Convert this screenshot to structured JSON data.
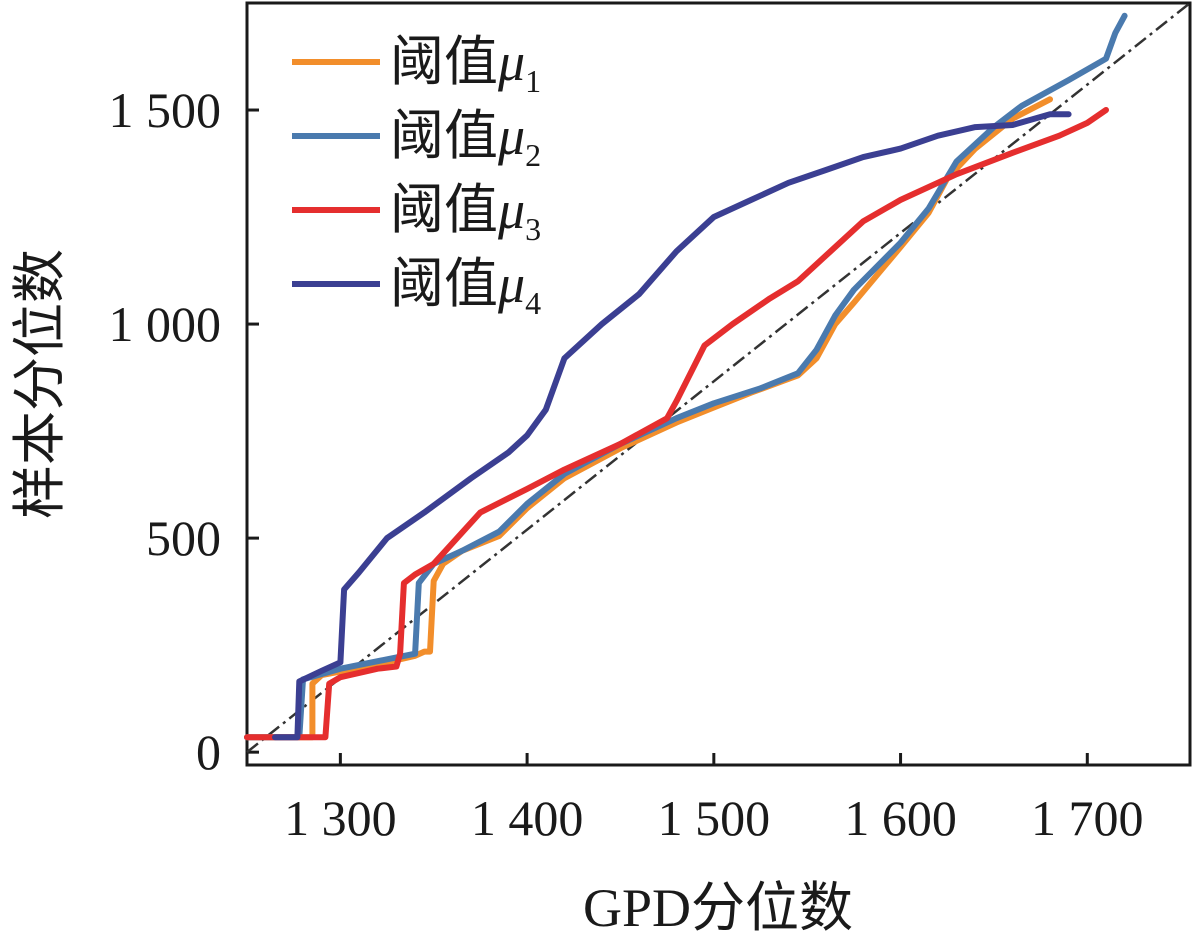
{
  "chart_data": {
    "type": "line",
    "xlabel": "GPD分位数",
    "ylabel": "样本分位数",
    "xlim": [
      1250,
      1755
    ],
    "ylim": [
      -30,
      1750
    ],
    "xticks": [
      {
        "value": 1300,
        "label": "1 300"
      },
      {
        "value": 1400,
        "label": "1 400"
      },
      {
        "value": 1500,
        "label": "1 500"
      },
      {
        "value": 1600,
        "label": "1 600"
      },
      {
        "value": 1700,
        "label": "1 700"
      }
    ],
    "yticks": [
      {
        "value": 0,
        "label": "0"
      },
      {
        "value": 500,
        "label": "500"
      },
      {
        "value": 1000,
        "label": "1 000"
      },
      {
        "value": 1500,
        "label": "1 500"
      }
    ],
    "reference_line": {
      "style": "dash-dot",
      "color": "#333333",
      "from": [
        1250,
        0
      ],
      "to": [
        1755,
        1750
      ]
    },
    "legend_position": "top-left",
    "series": [
      {
        "name": "阈值",
        "symbol": "μ",
        "subscript": "1",
        "color": "#F28E2B",
        "points": [
          [
            1250,
            35
          ],
          [
            1285,
            35
          ],
          [
            1285,
            160
          ],
          [
            1290,
            180
          ],
          [
            1320,
            205
          ],
          [
            1340,
            225
          ],
          [
            1345,
            235
          ],
          [
            1348,
            235
          ],
          [
            1350,
            400
          ],
          [
            1355,
            440
          ],
          [
            1365,
            470
          ],
          [
            1385,
            505
          ],
          [
            1400,
            570
          ],
          [
            1420,
            640
          ],
          [
            1450,
            710
          ],
          [
            1480,
            770
          ],
          [
            1500,
            805
          ],
          [
            1520,
            840
          ],
          [
            1545,
            880
          ],
          [
            1555,
            920
          ],
          [
            1565,
            1000
          ],
          [
            1575,
            1050
          ],
          [
            1600,
            1180
          ],
          [
            1615,
            1260
          ],
          [
            1625,
            1340
          ],
          [
            1640,
            1410
          ],
          [
            1660,
            1480
          ],
          [
            1680,
            1525
          ]
        ]
      },
      {
        "name": "阈值",
        "symbol": "μ",
        "subscript": "2",
        "color": "#4A7AAE",
        "points": [
          [
            1250,
            35
          ],
          [
            1278,
            35
          ],
          [
            1280,
            170
          ],
          [
            1300,
            195
          ],
          [
            1340,
            230
          ],
          [
            1342,
            395
          ],
          [
            1350,
            440
          ],
          [
            1365,
            470
          ],
          [
            1385,
            515
          ],
          [
            1400,
            580
          ],
          [
            1420,
            650
          ],
          [
            1450,
            720
          ],
          [
            1480,
            780
          ],
          [
            1500,
            815
          ],
          [
            1525,
            850
          ],
          [
            1545,
            885
          ],
          [
            1555,
            940
          ],
          [
            1565,
            1020
          ],
          [
            1575,
            1080
          ],
          [
            1600,
            1190
          ],
          [
            1615,
            1270
          ],
          [
            1630,
            1380
          ],
          [
            1650,
            1460
          ],
          [
            1665,
            1510
          ],
          [
            1690,
            1570
          ],
          [
            1710,
            1620
          ],
          [
            1715,
            1680
          ],
          [
            1720,
            1720
          ]
        ]
      },
      {
        "name": "阈值",
        "symbol": "μ",
        "subscript": "3",
        "color": "#E52E2E",
        "points": [
          [
            1250,
            35
          ],
          [
            1292,
            35
          ],
          [
            1294,
            160
          ],
          [
            1300,
            175
          ],
          [
            1320,
            195
          ],
          [
            1330,
            200
          ],
          [
            1332,
            230
          ],
          [
            1334,
            395
          ],
          [
            1340,
            415
          ],
          [
            1350,
            440
          ],
          [
            1375,
            560
          ],
          [
            1400,
            615
          ],
          [
            1420,
            660
          ],
          [
            1450,
            720
          ],
          [
            1475,
            780
          ],
          [
            1480,
            820
          ],
          [
            1495,
            950
          ],
          [
            1510,
            1000
          ],
          [
            1530,
            1060
          ],
          [
            1545,
            1100
          ],
          [
            1560,
            1160
          ],
          [
            1580,
            1240
          ],
          [
            1600,
            1290
          ],
          [
            1630,
            1350
          ],
          [
            1660,
            1400
          ],
          [
            1685,
            1440
          ],
          [
            1700,
            1470
          ],
          [
            1710,
            1500
          ]
        ]
      },
      {
        "name": "阈值",
        "symbol": "μ",
        "subscript": "4",
        "color": "#3B3F92",
        "points": [
          [
            1265,
            35
          ],
          [
            1277,
            35
          ],
          [
            1278,
            165
          ],
          [
            1290,
            190
          ],
          [
            1300,
            210
          ],
          [
            1302,
            380
          ],
          [
            1310,
            420
          ],
          [
            1325,
            500
          ],
          [
            1345,
            560
          ],
          [
            1370,
            640
          ],
          [
            1390,
            700
          ],
          [
            1400,
            740
          ],
          [
            1410,
            800
          ],
          [
            1420,
            920
          ],
          [
            1440,
            1000
          ],
          [
            1460,
            1070
          ],
          [
            1480,
            1170
          ],
          [
            1500,
            1250
          ],
          [
            1520,
            1290
          ],
          [
            1540,
            1330
          ],
          [
            1560,
            1360
          ],
          [
            1580,
            1390
          ],
          [
            1600,
            1410
          ],
          [
            1620,
            1440
          ],
          [
            1640,
            1460
          ],
          [
            1660,
            1465
          ],
          [
            1680,
            1490
          ],
          [
            1690,
            1490
          ]
        ]
      }
    ]
  }
}
